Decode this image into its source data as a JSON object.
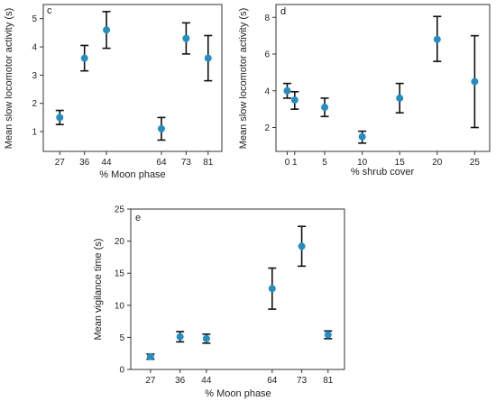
{
  "colors": {
    "point": "#1f8fc6",
    "errorbar": "#111111",
    "axis": "#333333"
  },
  "chart_data": [
    {
      "panel": "c",
      "type": "scatter",
      "xlabel": "% Moon phase",
      "ylabel": "Mean slow locomotor activity (s)",
      "x": [
        27,
        36,
        44,
        64,
        73,
        81
      ],
      "xticks": [
        27,
        36,
        44,
        64,
        73,
        81
      ],
      "y": [
        1.5,
        3.6,
        4.6,
        1.1,
        4.3,
        3.6
      ],
      "yerr_low": [
        1.25,
        3.15,
        3.95,
        0.7,
        3.75,
        2.8
      ],
      "yerr_high": [
        1.75,
        4.05,
        5.25,
        1.5,
        4.85,
        4.4
      ],
      "xlim": [
        21,
        86
      ],
      "ylim": [
        0.3,
        5.5
      ],
      "yticks": [
        1,
        2,
        3,
        4,
        5
      ],
      "grid": false
    },
    {
      "panel": "d",
      "type": "scatter",
      "xlabel": "% shrub cover",
      "ylabel": "Mean slow locomotor activity (s)",
      "x": [
        0,
        1,
        5,
        10,
        15,
        20,
        25
      ],
      "xticks": [
        0,
        1,
        5,
        10,
        15,
        20,
        25
      ],
      "y": [
        4.0,
        3.5,
        3.1,
        1.5,
        3.6,
        6.8,
        4.5
      ],
      "yerr_low": [
        3.6,
        3.0,
        2.6,
        1.15,
        2.8,
        5.6,
        2.0
      ],
      "yerr_high": [
        4.4,
        3.95,
        3.6,
        1.8,
        4.4,
        8.05,
        7.0
      ],
      "xlim": [
        -1.5,
        27
      ],
      "ylim": [
        0.7,
        8.7
      ],
      "yticks": [
        2,
        4,
        6,
        8
      ],
      "grid": false
    },
    {
      "panel": "e",
      "type": "scatter",
      "xlabel": "% Moon phase",
      "ylabel": "Mean vigilance time (s)",
      "x": [
        27,
        36,
        44,
        64,
        73,
        81
      ],
      "xticks": [
        27,
        36,
        44,
        64,
        73,
        81
      ],
      "y": [
        2.0,
        5.1,
        4.8,
        12.6,
        19.2,
        5.4
      ],
      "yerr_low": [
        1.6,
        4.3,
        4.1,
        9.4,
        16.1,
        4.8
      ],
      "yerr_high": [
        2.4,
        5.9,
        5.5,
        15.8,
        22.3,
        6.0
      ],
      "xlim": [
        21,
        86
      ],
      "ylim": [
        0,
        25
      ],
      "yticks": [
        0,
        5,
        10,
        15,
        20,
        25
      ],
      "grid": false
    }
  ]
}
